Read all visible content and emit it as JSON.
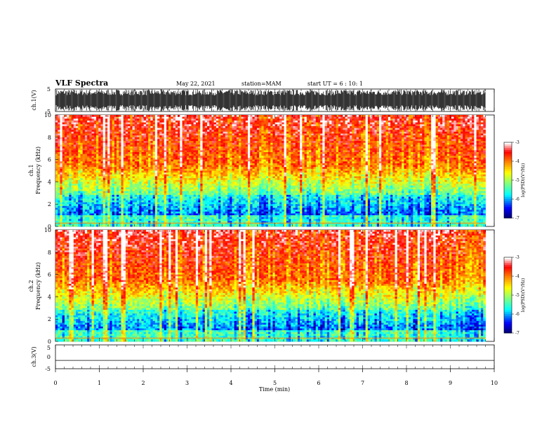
{
  "header": {
    "title": "VLF Spectra",
    "date": "May 22, 2021",
    "station": "station=MAM",
    "start": "start UT =  6 : 10: 1"
  },
  "colors": {
    "colormap": [
      "#00007f",
      "#0000ff",
      "#007fff",
      "#00ffff",
      "#7fff7f",
      "#ffff00",
      "#ff7f00",
      "#ff0000",
      "#ffb0b0",
      "#ffffff"
    ]
  },
  "chart_data": [
    {
      "type": "line",
      "name": "ch1-waveform",
      "ylabel": "ch.1(V)",
      "ylim": [
        -5,
        5
      ],
      "yticks": [
        "5",
        "-5"
      ],
      "description_value": "dense broadband signal roughly between -3 and +3 V",
      "xlim": [
        0,
        10
      ]
    },
    {
      "type": "heatmap",
      "name": "ch1-spectrogram",
      "ylabel_top": "ch.1",
      "ylabel": "Frequency (kHz)",
      "ylim": [
        0,
        10
      ],
      "yticks": [
        "0",
        "2",
        "4",
        "6",
        "8",
        "10"
      ],
      "xlim": [
        0,
        9.8
      ],
      "colorbar": {
        "label": "log(PSD)(V²/Hz)",
        "range": [
          -7,
          -3
        ],
        "ticks": [
          "-3",
          "-4",
          "-5",
          "-6",
          "-7"
        ]
      }
    },
    {
      "type": "heatmap",
      "name": "ch2-spectrogram",
      "ylabel_top": "ch.2",
      "ylabel": "Frequency (kHz)",
      "ylim": [
        0,
        10
      ],
      "yticks": [
        "0",
        "2",
        "4",
        "6",
        "8",
        "10"
      ],
      "xlim": [
        0,
        9.8
      ],
      "colorbar": {
        "label": "log(PSD)(V²/Hz)",
        "range": [
          -7,
          -3
        ],
        "ticks": [
          "-3",
          "-4",
          "-5",
          "-6",
          "-7"
        ]
      }
    },
    {
      "type": "line",
      "name": "ch3-waveform",
      "ylabel": "ch.3(V)",
      "ylim": [
        -5,
        5
      ],
      "yticks": [
        "5",
        "0",
        "-5"
      ],
      "y_const": -1.5,
      "xlim": [
        0,
        10
      ],
      "xlabel": "Time (min)",
      "xticks": [
        "0",
        "1",
        "2",
        "3",
        "4",
        "5",
        "6",
        "7",
        "8",
        "9",
        "10"
      ]
    }
  ]
}
